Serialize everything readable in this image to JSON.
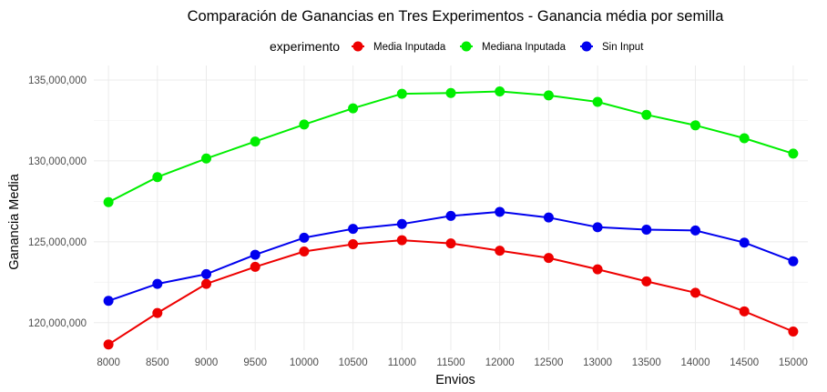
{
  "chart_data": {
    "type": "line",
    "title": "Comparación de Ganancias en Tres Experimentos - Ganancia média por semilla",
    "xlabel": "Envios",
    "ylabel": "Ganancia Media",
    "x": [
      8000,
      8500,
      9000,
      9500,
      10000,
      10500,
      11000,
      11500,
      12000,
      12500,
      13000,
      13500,
      14000,
      14500,
      15000
    ],
    "x_tick_labels": [
      "8000",
      "8500",
      "9000",
      "9500",
      "10000",
      "10500",
      "11000",
      "11500",
      "12000",
      "12500",
      "13000",
      "13500",
      "14000",
      "14500",
      "15000"
    ],
    "y_ticks": [
      120000000,
      125000000,
      130000000,
      135000000
    ],
    "y_tick_labels": [
      "120,000,000",
      "125,000,000",
      "130,000,000",
      "135,000,000"
    ],
    "ylim": [
      118300000,
      135900000
    ],
    "xlim": [
      7850,
      15150
    ],
    "grid": true,
    "legend": {
      "title": "experimento",
      "position": "top"
    },
    "series": [
      {
        "name": "Media Inputada",
        "color": "#ee0000",
        "values": [
          118650000,
          120600000,
          122400000,
          123450000,
          124400000,
          124850000,
          125100000,
          124900000,
          124450000,
          124000000,
          123300000,
          122550000,
          121850000,
          120700000,
          119450000
        ]
      },
      {
        "name": "Mediana Inputada",
        "color": "#00ee00",
        "values": [
          127450000,
          129000000,
          130150000,
          131200000,
          132250000,
          133250000,
          134150000,
          134200000,
          134300000,
          134050000,
          133650000,
          132850000,
          132200000,
          131400000,
          130450000
        ]
      },
      {
        "name": "Sin Input",
        "color": "#0000ee",
        "values": [
          121350000,
          122400000,
          123000000,
          124200000,
          125250000,
          125800000,
          126100000,
          126600000,
          126850000,
          126500000,
          125900000,
          125750000,
          125700000,
          124950000,
          123800000
        ]
      }
    ]
  }
}
